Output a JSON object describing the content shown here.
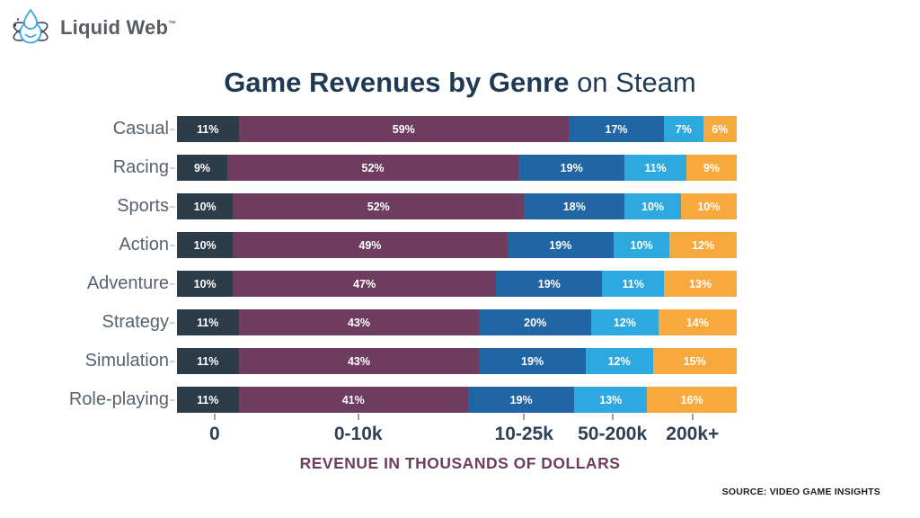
{
  "logo": {
    "text": "Liquid Web",
    "trademark": "™"
  },
  "title": {
    "bold": "Game Revenues by Genre",
    "light": " on Steam"
  },
  "chart_data": {
    "type": "bar",
    "stacked": true,
    "orientation": "horizontal",
    "title": "Game Revenues by Genre on Steam",
    "xlabel": "REVENUE IN THOUSANDS OF DOLLARS",
    "value_unit": "%",
    "buckets": [
      "0",
      "0-10k",
      "10-25k",
      "50-200k",
      "200k+"
    ],
    "bucket_colors": [
      "#2d3c49",
      "#6d3c5f",
      "#2065a4",
      "#2ea9e0",
      "#f8a93d"
    ],
    "categories": [
      "Casual",
      "Racing",
      "Sports",
      "Action",
      "Adventure",
      "Strategy",
      "Simulation",
      "Role-playing"
    ],
    "series": [
      {
        "name": "Casual",
        "values": [
          11,
          59,
          17,
          7,
          6
        ]
      },
      {
        "name": "Racing",
        "values": [
          9,
          52,
          19,
          11,
          9
        ]
      },
      {
        "name": "Sports",
        "values": [
          10,
          52,
          18,
          10,
          10
        ]
      },
      {
        "name": "Action",
        "values": [
          10,
          49,
          19,
          10,
          12
        ]
      },
      {
        "name": "Adventure",
        "values": [
          10,
          47,
          19,
          11,
          13
        ]
      },
      {
        "name": "Strategy",
        "values": [
          11,
          43,
          20,
          12,
          14
        ]
      },
      {
        "name": "Simulation",
        "values": [
          11,
          43,
          19,
          12,
          15
        ]
      },
      {
        "name": "Role-playing",
        "values": [
          11,
          41,
          19,
          13,
          16
        ]
      }
    ],
    "legend": "none",
    "grid": false,
    "xlim": [
      0,
      100
    ]
  },
  "source": "SOURCE: VIDEO GAME INSIGHTS",
  "colors": {
    "title": "#1f3a52",
    "category_label": "#56626e",
    "axis_label": "#2e4156",
    "axis_title": "#6d3c5f",
    "source": "#1c1c1c",
    "logo_text": "#595d61",
    "logo_blue": "#36a9e1",
    "logo_dark": "#3d4651",
    "background": "#ffffff"
  }
}
